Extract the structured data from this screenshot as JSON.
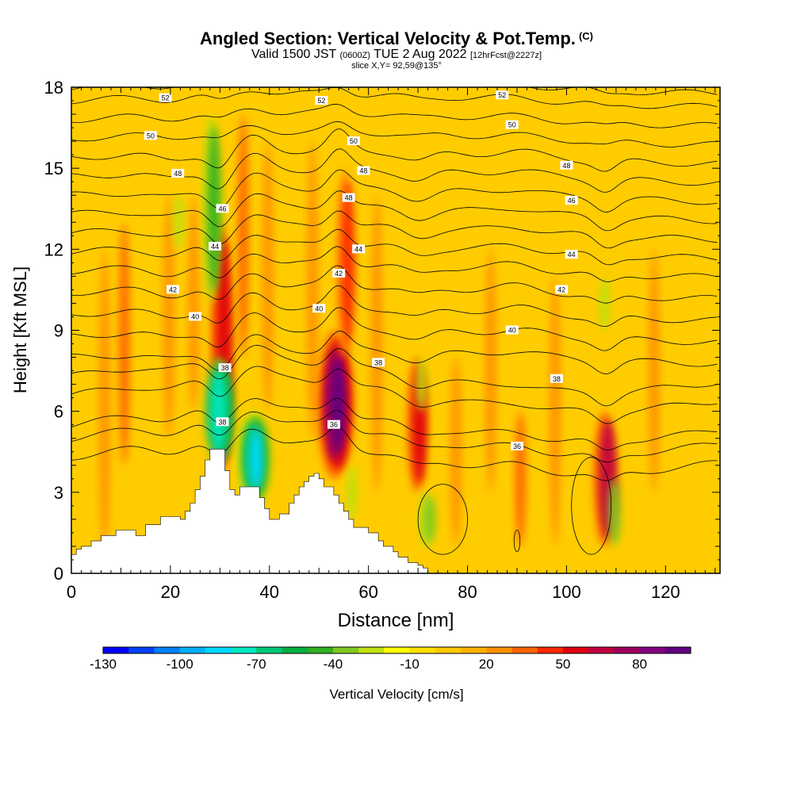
{
  "header": {
    "title_main": "Angled Section: Vertical Velocity & Pot.Temp.",
    "title_unit": "(C)",
    "valid_prefix": "Valid 1500 JST",
    "valid_utc": "(0600Z)",
    "valid_date": "TUE 2 Aug 2022",
    "valid_fcst": "[12hrFcst@2227z]",
    "slice": "slice X,Y= 92,59@135°"
  },
  "chart_data": {
    "type": "heatmap",
    "title": "Angled Section: Vertical Velocity & Pot.Temp. (C)",
    "xlabel": "Distance [nm]",
    "ylabel": "Height [Kft MSL]",
    "xlim": [
      0,
      131
    ],
    "ylim": [
      0,
      18
    ],
    "x_ticks": [
      "0",
      "20",
      "40",
      "60",
      "80",
      "100",
      "120"
    ],
    "y_ticks": [
      "0",
      "3",
      "6",
      "9",
      "12",
      "15",
      "18"
    ],
    "colorbar": {
      "label": "Vertical Velocity [cm/s]",
      "tick_labels": [
        "-130",
        "-100",
        "-70",
        "-40",
        "-10",
        "20",
        "50",
        "80"
      ],
      "colors": [
        "#0000ff",
        "#0040ff",
        "#0080ff",
        "#00b0ff",
        "#00d8ff",
        "#00e8c0",
        "#00c878",
        "#00b040",
        "#30b020",
        "#80c820",
        "#c0e010",
        "#ffff00",
        "#ffe000",
        "#ffc800",
        "#ffb000",
        "#ff9000",
        "#ff6400",
        "#ff2800",
        "#e00010",
        "#c00040",
        "#a00060",
        "#800080",
        "#600080"
      ]
    },
    "background_color": "#ffcc00",
    "updrafts": [
      {
        "x": 7,
        "z0": 0.5,
        "z1": 12,
        "w": 25
      },
      {
        "x": 11,
        "z0": 4,
        "z1": 13,
        "w": 30
      },
      {
        "x": 20,
        "z0": 5,
        "z1": 14,
        "w": 20
      },
      {
        "x": 25,
        "z0": 6,
        "z1": 14,
        "w": 25
      },
      {
        "x": 30.5,
        "z0": 3.5,
        "z1": 13,
        "w": 55
      },
      {
        "x": 35,
        "z0": 8,
        "z1": 17,
        "w": 30
      },
      {
        "x": 40,
        "z0": 6,
        "z1": 16,
        "w": 25
      },
      {
        "x": 49,
        "z0": 5,
        "z1": 16,
        "w": 25
      },
      {
        "x": 53.5,
        "z0": 3.5,
        "z1": 9,
        "w": 95
      },
      {
        "x": 55.5,
        "z0": 8,
        "z1": 15,
        "w": 45
      },
      {
        "x": 62,
        "z0": 3,
        "z1": 14,
        "w": 25
      },
      {
        "x": 70,
        "z0": 3,
        "z1": 8,
        "w": 50
      },
      {
        "x": 78,
        "z0": 1,
        "z1": 8,
        "w": 25
      },
      {
        "x": 85,
        "z0": 3,
        "z1": 12,
        "w": 20
      },
      {
        "x": 91,
        "z0": 1,
        "z1": 6,
        "w": 30
      },
      {
        "x": 98,
        "z0": 1,
        "z1": 11,
        "w": 20
      },
      {
        "x": 108,
        "z0": 1,
        "z1": 6,
        "w": 60
      },
      {
        "x": 118,
        "z0": 3,
        "z1": 12,
        "w": 20
      }
    ],
    "downdrafts": [
      {
        "x": 22,
        "z0": 12,
        "z1": 14,
        "w": -30
      },
      {
        "x": 28.5,
        "z0": 10,
        "z1": 17,
        "w": -45
      },
      {
        "x": 30,
        "z0": 4,
        "z1": 8,
        "w": -80
      },
      {
        "x": 37,
        "z0": 2.5,
        "z1": 6,
        "w": -90
      },
      {
        "x": 57,
        "z0": 2,
        "z1": 4,
        "w": -30
      },
      {
        "x": 72,
        "z0": 1,
        "z1": 3,
        "w": -40
      },
      {
        "x": 71,
        "z0": 6,
        "z1": 8,
        "w": -25
      },
      {
        "x": 110,
        "z0": 1,
        "z1": 3.5,
        "w": -35
      },
      {
        "x": 108,
        "z0": 9,
        "z1": 11,
        "w": -25
      }
    ],
    "terrain": {
      "x": [
        0,
        1,
        1,
        2,
        2,
        4,
        4,
        6,
        6,
        9,
        9,
        13,
        13,
        15,
        15,
        18,
        18,
        22,
        22,
        23,
        23,
        24,
        24,
        25,
        25,
        26,
        26,
        27,
        27,
        28,
        28,
        31,
        31,
        32,
        32,
        33,
        33,
        34,
        34,
        38,
        38,
        39,
        39,
        40,
        40,
        42,
        42,
        44,
        44,
        45,
        45,
        46,
        46,
        47,
        47,
        48,
        48,
        49,
        49,
        50,
        50,
        51,
        51,
        53,
        53,
        54,
        54,
        55,
        55,
        56,
        56,
        57,
        57,
        60,
        60,
        62,
        62,
        63,
        63,
        65,
        65,
        66,
        66,
        68,
        68,
        70,
        70,
        71,
        71,
        72,
        72,
        131
      ],
      "z": [
        0.7,
        0.7,
        0.9,
        0.9,
        1.0,
        1.0,
        1.2,
        1.2,
        1.4,
        1.4,
        1.6,
        1.6,
        1.4,
        1.4,
        1.8,
        1.8,
        2.1,
        2.1,
        2.0,
        2.0,
        2.3,
        2.3,
        2.6,
        2.6,
        3.1,
        3.1,
        3.6,
        3.6,
        4.2,
        4.2,
        4.6,
        4.6,
        3.8,
        3.8,
        3.1,
        3.1,
        2.9,
        2.9,
        3.2,
        3.2,
        2.8,
        2.8,
        2.4,
        2.4,
        2.0,
        2.0,
        2.2,
        2.2,
        2.6,
        2.6,
        2.9,
        2.9,
        3.2,
        3.2,
        3.4,
        3.4,
        3.6,
        3.6,
        3.7,
        3.7,
        3.5,
        3.5,
        3.2,
        3.2,
        2.9,
        2.9,
        2.6,
        2.6,
        2.3,
        2.3,
        2.0,
        2.0,
        1.7,
        1.7,
        1.5,
        1.5,
        1.2,
        1.2,
        1.0,
        1.0,
        0.8,
        0.8,
        0.6,
        0.6,
        0.4,
        0.4,
        0.3,
        0.3,
        0.2,
        0.2,
        0.0
      ]
    },
    "isentropes": {
      "levels": [
        34,
        35,
        36,
        37,
        38,
        39,
        40,
        41,
        42,
        43,
        44,
        45,
        46,
        47,
        48,
        49,
        50,
        51,
        52,
        53
      ],
      "base_height": [
        4.3,
        5.0,
        5.5,
        6.6,
        7.3,
        8.0,
        8.8,
        9.6,
        10.4,
        11.2,
        11.9,
        12.6,
        13.3,
        14.0,
        14.7,
        15.4,
        16.1,
        16.8,
        17.5,
        18.0
      ],
      "labeled": [
        {
          "level": "36",
          "x": 53,
          "z": 5.5
        },
        {
          "level": "36",
          "x": 90,
          "z": 4.7
        },
        {
          "level": "38",
          "x": 31,
          "z": 7.6
        },
        {
          "level": "38",
          "x": 62,
          "z": 7.8
        },
        {
          "level": "38",
          "x": 98,
          "z": 7.2
        },
        {
          "level": "38",
          "x": 30.5,
          "z": 5.6
        },
        {
          "level": "40",
          "x": 25,
          "z": 9.5
        },
        {
          "level": "40",
          "x": 50,
          "z": 9.8
        },
        {
          "level": "40",
          "x": 89,
          "z": 9.0
        },
        {
          "level": "42",
          "x": 20.5,
          "z": 10.5
        },
        {
          "level": "42",
          "x": 54,
          "z": 11.1
        },
        {
          "level": "42",
          "x": 99,
          "z": 10.5
        },
        {
          "level": "44",
          "x": 29,
          "z": 12.1
        },
        {
          "level": "44",
          "x": 58,
          "z": 12.0
        },
        {
          "level": "44",
          "x": 101,
          "z": 11.8
        },
        {
          "level": "46",
          "x": 30.5,
          "z": 13.5
        },
        {
          "level": "46",
          "x": 101,
          "z": 13.8
        },
        {
          "level": "48",
          "x": 21.5,
          "z": 14.8
        },
        {
          "level": "48",
          "x": 56,
          "z": 13.9
        },
        {
          "level": "48",
          "x": 59,
          "z": 14.9
        },
        {
          "level": "48",
          "x": 100,
          "z": 15.1
        },
        {
          "level": "50",
          "x": 16,
          "z": 16.2
        },
        {
          "level": "50",
          "x": 57,
          "z": 16.0
        },
        {
          "level": "50",
          "x": 89,
          "z": 16.6
        },
        {
          "level": "52",
          "x": 19,
          "z": 17.6
        },
        {
          "level": "52",
          "x": 50.5,
          "z": 17.5
        },
        {
          "level": "52",
          "x": 87,
          "z": 17.7
        }
      ]
    }
  }
}
